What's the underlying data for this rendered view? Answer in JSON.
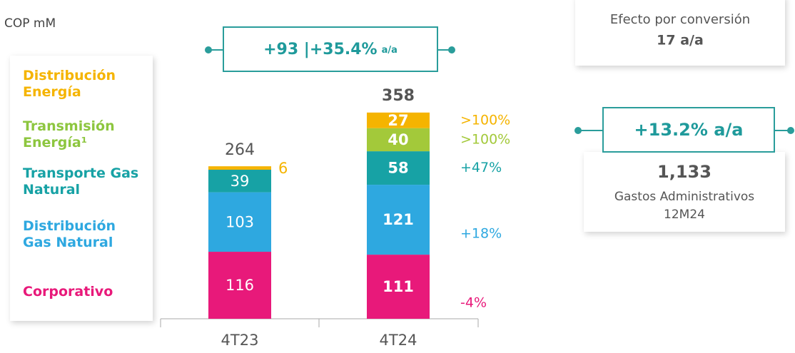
{
  "chart_data": {
    "type": "stacked_bar",
    "unit_label": "COP mM",
    "categories": [
      "4T23",
      "4T24"
    ],
    "series": [
      {
        "name": "Corporativo",
        "color": "#e8197a",
        "values": [
          116,
          111
        ],
        "change": "-4%"
      },
      {
        "name": "Distribución Gas Natural",
        "color": "#2ea8e0",
        "values": [
          103,
          121
        ],
        "change": "+18%"
      },
      {
        "name": "Transporte Gas Natural",
        "color": "#17a2a5",
        "values": [
          39,
          58
        ],
        "change": "+47%"
      },
      {
        "name": "Transmisión Energía¹",
        "color": "#a3c93a",
        "values": [
          null,
          40
        ],
        "change": ">100%"
      },
      {
        "name": "Distribución Energía",
        "color": "#f5b400",
        "values": [
          6,
          27
        ],
        "change": ">100%"
      }
    ],
    "totals": [
      264,
      358
    ],
    "growth_annotation": {
      "main": "+93 |+35.4%",
      "suffix": "a/a"
    },
    "conversion_box": {
      "title": "Efecto por conversión",
      "value": "17 a/a"
    },
    "admin_box": {
      "growth": "+13.2% a/a",
      "value": "1,133",
      "label": "Gastos Administrativos",
      "period": "12M24"
    }
  }
}
